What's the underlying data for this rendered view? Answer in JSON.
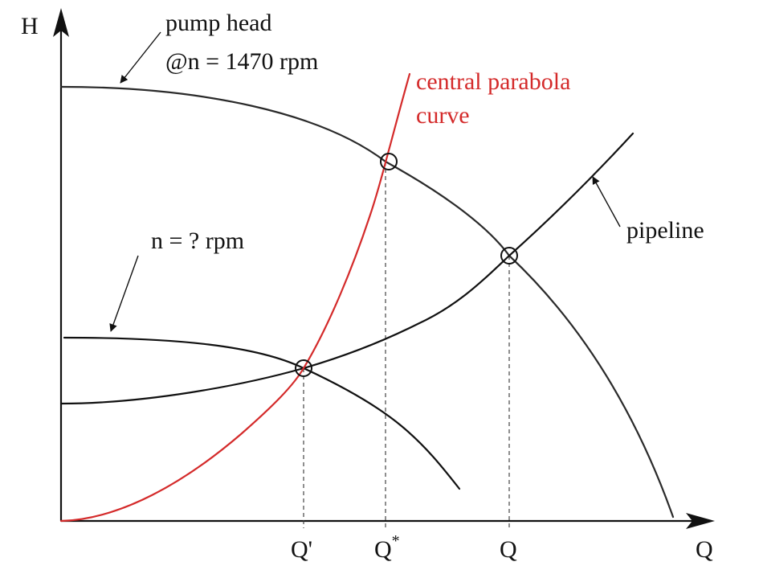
{
  "diagram": {
    "axes": {
      "y_label": "H",
      "x_label": "Q"
    },
    "labels": {
      "pump_head_line1": "pump head",
      "pump_head_line2": "@n = 1470 rpm",
      "central_parabola_line1": "central parabola",
      "central_parabola_line2": "curve",
      "unknown_speed": "n = ? rpm",
      "pipeline": "pipeline"
    },
    "flow_marks": {
      "q_prime": "Q'",
      "q_star_base": "Q",
      "q_star_sup": "*",
      "q_main": "Q"
    },
    "colors": {
      "ink": "#111111",
      "pump_curve": "#2a2a2a",
      "parabola": "#d42a2a",
      "dashed": "#333333"
    }
  }
}
